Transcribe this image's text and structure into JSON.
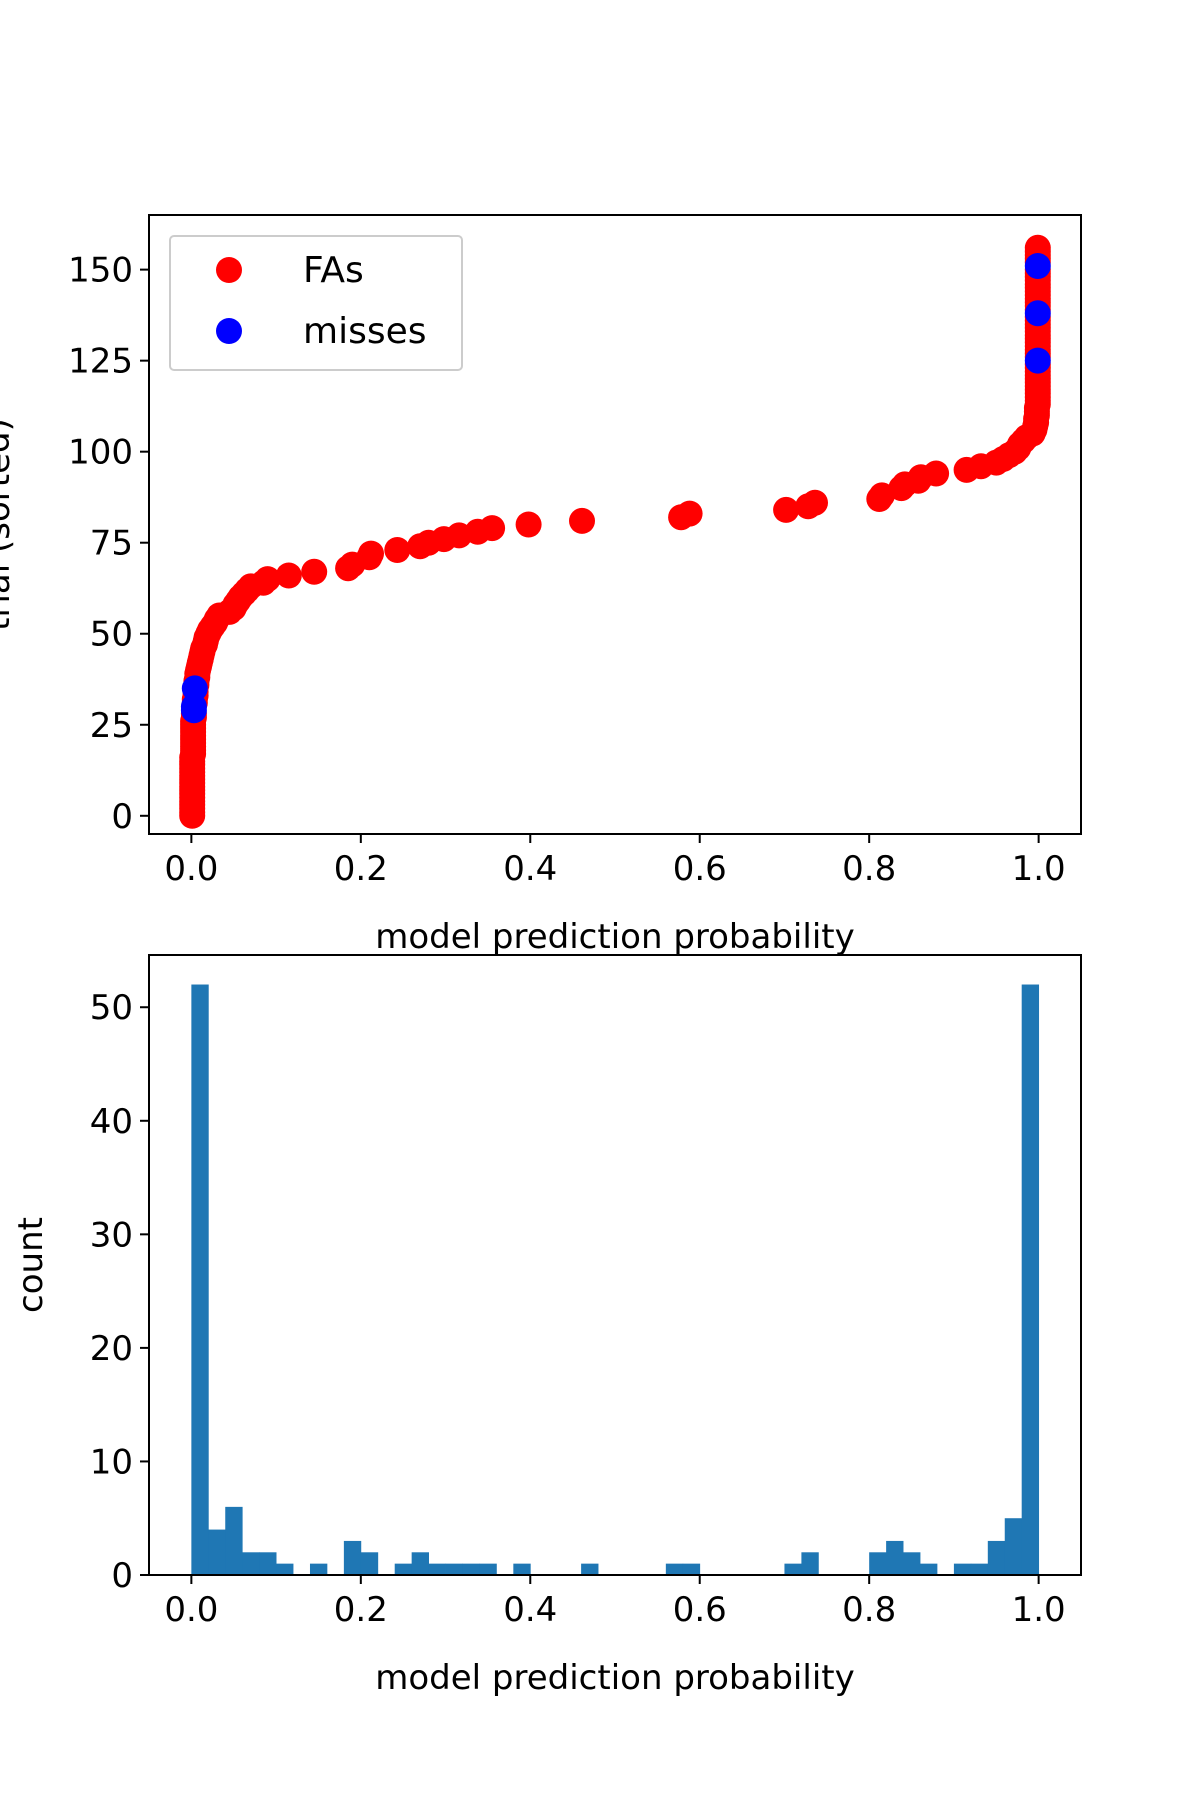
{
  "colors": {
    "fa": "#ff0000",
    "miss": "#0000ff",
    "bar": "#1f77b4",
    "axis": "#000000",
    "legend_border": "#cccccc"
  },
  "chart_data": [
    {
      "type": "scatter",
      "xlabel": "model prediction probability",
      "ylabel": "trial (sorted)",
      "xlim": [
        -0.05,
        1.05
      ],
      "ylim": [
        -5,
        165
      ],
      "xticks": [
        0.0,
        0.2,
        0.4,
        0.6,
        0.8,
        1.0
      ],
      "xtick_labels": [
        "0.0",
        "0.2",
        "0.4",
        "0.6",
        "0.8",
        "1.0"
      ],
      "yticks": [
        0,
        25,
        50,
        75,
        100,
        125,
        150
      ],
      "ytick_labels": [
        "0",
        "25",
        "50",
        "75",
        "100",
        "125",
        "150"
      ],
      "legend": {
        "placement": "top-left",
        "entries": [
          "FAs",
          "misses"
        ]
      },
      "series": [
        {
          "name": "FAs",
          "points": [
            [
              0.001,
              0
            ],
            [
              0.001,
              1
            ],
            [
              0.001,
              2
            ],
            [
              0.001,
              3
            ],
            [
              0.001,
              4
            ],
            [
              0.001,
              5
            ],
            [
              0.001,
              6
            ],
            [
              0.001,
              7
            ],
            [
              0.001,
              8
            ],
            [
              0.001,
              9
            ],
            [
              0.001,
              10
            ],
            [
              0.001,
              11
            ],
            [
              0.001,
              12
            ],
            [
              0.001,
              13
            ],
            [
              0.001,
              14
            ],
            [
              0.001,
              15
            ],
            [
              0.001,
              16
            ],
            [
              0.002,
              17
            ],
            [
              0.002,
              18
            ],
            [
              0.002,
              19
            ],
            [
              0.002,
              20
            ],
            [
              0.002,
              21
            ],
            [
              0.002,
              22
            ],
            [
              0.002,
              23
            ],
            [
              0.002,
              24
            ],
            [
              0.002,
              25
            ],
            [
              0.002,
              26
            ],
            [
              0.003,
              27
            ],
            [
              0.003,
              28
            ],
            [
              0.004,
              31
            ],
            [
              0.004,
              32
            ],
            [
              0.005,
              33
            ],
            [
              0.005,
              34
            ],
            [
              0.006,
              36
            ],
            [
              0.006,
              37
            ],
            [
              0.007,
              38
            ],
            [
              0.007,
              39
            ],
            [
              0.008,
              40
            ],
            [
              0.009,
              41
            ],
            [
              0.01,
              42
            ],
            [
              0.011,
              43
            ],
            [
              0.012,
              44
            ],
            [
              0.013,
              45
            ],
            [
              0.014,
              46
            ],
            [
              0.016,
              47
            ],
            [
              0.017,
              48
            ],
            [
              0.018,
              49
            ],
            [
              0.02,
              50
            ],
            [
              0.022,
              51
            ],
            [
              0.025,
              52
            ],
            [
              0.028,
              53
            ],
            [
              0.03,
              54
            ],
            [
              0.033,
              55
            ],
            [
              0.045,
              56
            ],
            [
              0.05,
              57
            ],
            [
              0.052,
              58
            ],
            [
              0.055,
              59
            ],
            [
              0.058,
              60
            ],
            [
              0.062,
              61
            ],
            [
              0.066,
              62
            ],
            [
              0.07,
              63
            ],
            [
              0.085,
              64
            ],
            [
              0.09,
              65
            ],
            [
              0.115,
              66
            ],
            [
              0.145,
              67
            ],
            [
              0.185,
              68
            ],
            [
              0.19,
              69
            ],
            [
              0.21,
              71
            ],
            [
              0.212,
              72
            ],
            [
              0.243,
              73
            ],
            [
              0.27,
              74
            ],
            [
              0.28,
              75
            ],
            [
              0.298,
              76
            ],
            [
              0.316,
              77
            ],
            [
              0.338,
              78
            ],
            [
              0.355,
              79
            ],
            [
              0.398,
              80
            ],
            [
              0.461,
              81
            ],
            [
              0.578,
              82
            ],
            [
              0.588,
              83
            ],
            [
              0.702,
              84
            ],
            [
              0.728,
              85
            ],
            [
              0.736,
              86
            ],
            [
              0.812,
              87
            ],
            [
              0.815,
              88
            ],
            [
              0.838,
              90
            ],
            [
              0.842,
              91
            ],
            [
              0.858,
              92
            ],
            [
              0.861,
              93
            ],
            [
              0.879,
              94
            ],
            [
              0.915,
              95
            ],
            [
              0.932,
              96
            ],
            [
              0.95,
              97
            ],
            [
              0.958,
              98
            ],
            [
              0.965,
              99
            ],
            [
              0.972,
              100
            ],
            [
              0.976,
              101
            ],
            [
              0.978,
              102
            ],
            [
              0.982,
              103
            ],
            [
              0.986,
              104
            ],
            [
              0.993,
              105
            ],
            [
              0.995,
              106
            ],
            [
              0.996,
              107
            ],
            [
              0.997,
              108
            ],
            [
              0.997,
              109
            ],
            [
              0.998,
              110
            ],
            [
              0.998,
              111
            ],
            [
              0.998,
              112
            ],
            [
              0.999,
              113
            ],
            [
              0.999,
              114
            ],
            [
              0.999,
              115
            ],
            [
              0.999,
              116
            ],
            [
              0.999,
              117
            ],
            [
              0.999,
              118
            ],
            [
              0.999,
              119
            ],
            [
              0.999,
              120
            ],
            [
              0.999,
              121
            ],
            [
              0.999,
              122
            ],
            [
              0.999,
              123
            ],
            [
              0.999,
              124
            ],
            [
              0.999,
              126
            ],
            [
              0.999,
              127
            ],
            [
              0.999,
              128
            ],
            [
              0.999,
              129
            ],
            [
              0.999,
              130
            ],
            [
              0.999,
              131
            ],
            [
              0.999,
              132
            ],
            [
              0.999,
              133
            ],
            [
              0.999,
              134
            ],
            [
              0.999,
              135
            ],
            [
              0.999,
              136
            ],
            [
              0.999,
              137
            ],
            [
              0.999,
              139
            ],
            [
              0.999,
              140
            ],
            [
              0.999,
              141
            ],
            [
              0.999,
              142
            ],
            [
              0.999,
              143
            ],
            [
              0.999,
              144
            ],
            [
              0.999,
              145
            ],
            [
              0.999,
              146
            ],
            [
              0.999,
              147
            ],
            [
              0.999,
              148
            ],
            [
              0.999,
              149
            ],
            [
              0.999,
              150
            ],
            [
              0.999,
              152
            ],
            [
              0.999,
              153
            ],
            [
              0.999,
              154
            ],
            [
              0.999,
              155
            ],
            [
              0.999,
              156
            ]
          ]
        },
        {
          "name": "misses",
          "points": [
            [
              0.003,
              29
            ],
            [
              0.003,
              30
            ],
            [
              0.004,
              35
            ],
            [
              0.999,
              125
            ],
            [
              0.999,
              138
            ],
            [
              0.999,
              151
            ]
          ]
        }
      ]
    },
    {
      "type": "bar",
      "xlabel": "model prediction probability",
      "ylabel": "count",
      "xlim": [
        -0.05,
        1.05
      ],
      "ylim": [
        0,
        54.6
      ],
      "xticks": [
        0.0,
        0.2,
        0.4,
        0.6,
        0.8,
        1.0
      ],
      "xtick_labels": [
        "0.0",
        "0.2",
        "0.4",
        "0.6",
        "0.8",
        "1.0"
      ],
      "yticks": [
        0,
        10,
        20,
        30,
        40,
        50
      ],
      "ytick_labels": [
        "0",
        "10",
        "20",
        "30",
        "40",
        "50"
      ],
      "bin_range": [
        0.0,
        1.0
      ],
      "bin_width": 0.02,
      "counts": [
        52,
        4,
        6,
        2,
        2,
        1,
        0,
        1,
        0,
        3,
        2,
        0,
        1,
        2,
        1,
        1,
        1,
        1,
        0,
        1,
        0,
        0,
        0,
        1,
        0,
        0,
        0,
        0,
        1,
        1,
        0,
        0,
        0,
        0,
        0,
        1,
        2,
        0,
        0,
        0,
        2,
        3,
        2,
        1,
        0,
        1,
        1,
        3,
        5,
        52
      ]
    }
  ]
}
